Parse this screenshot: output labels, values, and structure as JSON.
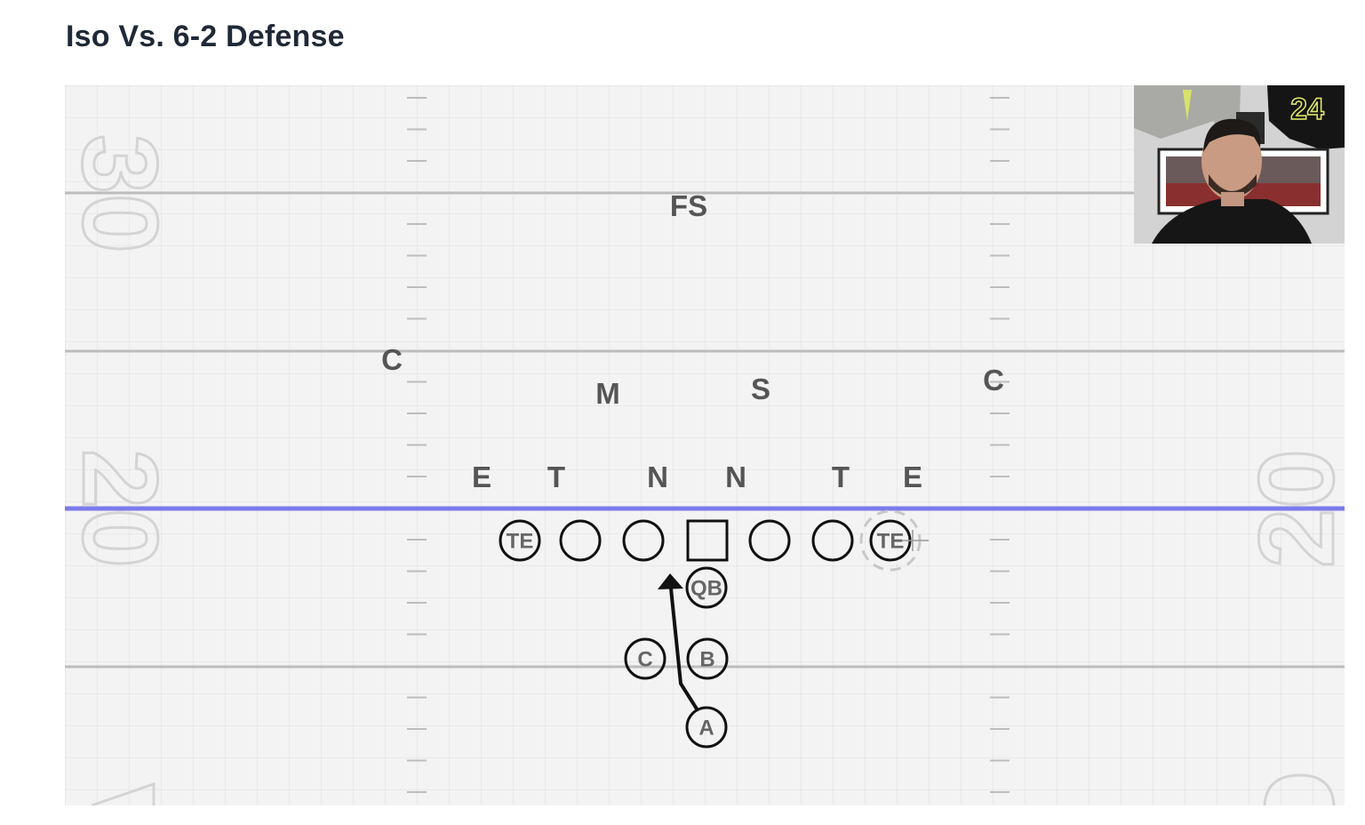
{
  "title": "Iso Vs. 6-2 Defense",
  "field": {
    "yard_numbers": [
      "30",
      "20",
      "20"
    ],
    "line_of_scrimmage_color": "#7b7bea"
  },
  "defense": [
    {
      "label": "FS"
    },
    {
      "label": "C"
    },
    {
      "label": "M"
    },
    {
      "label": "S"
    },
    {
      "label": "C"
    },
    {
      "label": "E"
    },
    {
      "label": "T"
    },
    {
      "label": "N"
    },
    {
      "label": "N"
    },
    {
      "label": "T"
    },
    {
      "label": "E"
    }
  ],
  "offense": [
    {
      "label": "TE",
      "shape": "circle"
    },
    {
      "label": "",
      "shape": "circle"
    },
    {
      "label": "",
      "shape": "circle"
    },
    {
      "label": "",
      "shape": "square"
    },
    {
      "label": "",
      "shape": "circle"
    },
    {
      "label": "",
      "shape": "circle"
    },
    {
      "label": "TE",
      "shape": "circle",
      "highlighted": true
    },
    {
      "label": "QB",
      "shape": "circle"
    },
    {
      "label": "C",
      "shape": "circle"
    },
    {
      "label": "B",
      "shape": "circle"
    },
    {
      "label": "A",
      "shape": "circle"
    }
  ],
  "webcam": {
    "jersey_number": "24"
  }
}
